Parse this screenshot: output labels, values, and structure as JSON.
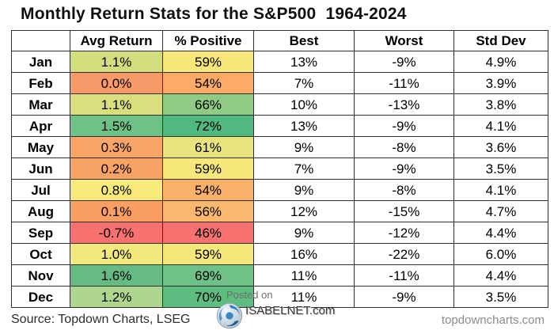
{
  "chart_data": {
    "type": "table",
    "title": "Monthly Return Stats for the S&P500  1964-2024",
    "columns": [
      "",
      "Avg Return",
      "% Positive",
      "Best",
      "Worst",
      "Std Dev"
    ],
    "rows": [
      {
        "month": "Jan",
        "avg": "1.1%",
        "avg_color": "#d3dd7d",
        "pos": "59%",
        "pos_color": "#f8e87c",
        "best": "13%",
        "worst": "-9%",
        "std": "4.9%"
      },
      {
        "month": "Feb",
        "avg": "0.0%",
        "avg_color": "#f8996a",
        "pos": "54%",
        "pos_color": "#fbab67",
        "best": "7%",
        "worst": "-11%",
        "std": "3.9%"
      },
      {
        "month": "Mar",
        "avg": "1.1%",
        "avg_color": "#d9df7d",
        "pos": "66%",
        "pos_color": "#90cb85",
        "best": "10%",
        "worst": "-13%",
        "std": "3.8%"
      },
      {
        "month": "Apr",
        "avg": "1.5%",
        "avg_color": "#6ec187",
        "pos": "72%",
        "pos_color": "#50b97f",
        "best": "13%",
        "worst": "-9%",
        "std": "4.1%"
      },
      {
        "month": "May",
        "avg": "0.3%",
        "avg_color": "#f9a568",
        "pos": "61%",
        "pos_color": "#e8e37d",
        "best": "9%",
        "worst": "-8%",
        "std": "3.6%"
      },
      {
        "month": "Jun",
        "avg": "0.2%",
        "avg_color": "#f9a265",
        "pos": "59%",
        "pos_color": "#f6e87b",
        "best": "7%",
        "worst": "-9%",
        "std": "3.5%"
      },
      {
        "month": "Jul",
        "avg": "0.8%",
        "avg_color": "#f8e97b",
        "pos": "54%",
        "pos_color": "#fbb169",
        "best": "9%",
        "worst": "-8%",
        "std": "4.1%"
      },
      {
        "month": "Aug",
        "avg": "0.1%",
        "avg_color": "#f99f63",
        "pos": "56%",
        "pos_color": "#fbb76e",
        "best": "12%",
        "worst": "-15%",
        "std": "4.7%"
      },
      {
        "month": "Sep",
        "avg": "-0.7%",
        "avg_color": "#f97171",
        "pos": "46%",
        "pos_color": "#f97171",
        "best": "9%",
        "worst": "-12%",
        "std": "4.4%"
      },
      {
        "month": "Oct",
        "avg": "1.0%",
        "avg_color": "#f3e87c",
        "pos": "59%",
        "pos_color": "#f5e87b",
        "best": "16%",
        "worst": "-22%",
        "std": "6.0%"
      },
      {
        "month": "Nov",
        "avg": "1.6%",
        "avg_color": "#65bb83",
        "pos": "69%",
        "pos_color": "#6fc187",
        "best": "11%",
        "worst": "-11%",
        "std": "4.4%"
      },
      {
        "month": "Dec",
        "avg": "1.2%",
        "avg_color": "#aed68f",
        "pos": "70%",
        "pos_color": "#5fbd82",
        "best": "11%",
        "worst": "-9%",
        "std": "3.5%"
      }
    ],
    "layout": {
      "grid": true,
      "border_color": "#2f2f2f",
      "scale_colors": {
        "low": "#f97171",
        "mid": "#f8e87c",
        "high": "#50b97f"
      }
    }
  },
  "watermark": {
    "posted_on": "Posted on",
    "site": "ISABELNET.com",
    "icon": "globe-icon"
  },
  "footer": {
    "source": "Source: Topdown Charts, LSEG",
    "site": "topdowncharts.com"
  }
}
